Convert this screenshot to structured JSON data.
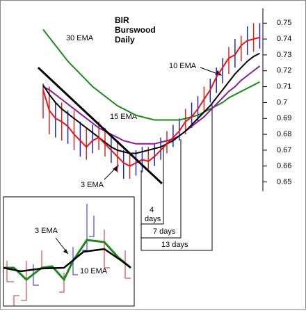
{
  "chart_data": {
    "type": "ohlc",
    "title_lines": [
      "BIR",
      "Burswood",
      "Daily"
    ],
    "x": [
      0,
      1,
      2,
      3,
      4,
      5,
      6,
      7,
      8,
      9,
      10,
      11,
      12,
      13,
      14,
      15,
      16,
      17,
      18,
      19,
      20,
      21,
      22,
      23,
      24,
      25,
      26,
      27,
      28,
      29,
      30,
      31,
      32,
      33,
      34,
      35
    ],
    "high": [
      0.712,
      0.71,
      0.7,
      0.7,
      0.695,
      0.695,
      0.688,
      0.684,
      0.686,
      0.688,
      0.684,
      0.68,
      0.675,
      0.67,
      0.668,
      0.67,
      0.672,
      0.672,
      0.674,
      0.678,
      0.682,
      0.686,
      0.69,
      0.696,
      0.7,
      0.704,
      0.71,
      0.715,
      0.722,
      0.728,
      0.735,
      0.74,
      0.742,
      0.748,
      0.75,
      0.75
    ],
    "low": [
      0.69,
      0.68,
      0.678,
      0.676,
      0.674,
      0.67,
      0.666,
      0.664,
      0.668,
      0.67,
      0.666,
      0.662,
      0.656,
      0.652,
      0.652,
      0.654,
      0.656,
      0.658,
      0.66,
      0.664,
      0.668,
      0.672,
      0.676,
      0.68,
      0.684,
      0.688,
      0.694,
      0.7,
      0.706,
      0.712,
      0.718,
      0.722,
      0.726,
      0.73,
      0.732,
      0.734
    ],
    "bar_colors": [
      "#d22",
      "#d22",
      "#22c",
      "#d22",
      "#22c",
      "#d22",
      "#22c",
      "#d22",
      "#22c",
      "#d22",
      "#d22",
      "#22c",
      "#d22",
      "#22c",
      "#d22",
      "#22c",
      "#22c",
      "#d22",
      "#22c",
      "#22c",
      "#d22",
      "#22c",
      "#22c",
      "#d22",
      "#22c",
      "#22c",
      "#d22",
      "#22c",
      "#22c",
      "#22c",
      "#d22",
      "#22c",
      "#d22",
      "#22c",
      "#d22",
      "#22c"
    ],
    "series": [
      {
        "name": "30 EMA",
        "color": "#1a8a1a",
        "values": [
          0.746,
          0.741,
          0.736,
          0.731,
          0.726,
          0.722,
          0.718,
          0.714,
          0.71,
          0.707,
          0.704,
          0.701,
          0.698,
          0.696,
          0.694,
          0.692,
          0.691,
          0.69,
          0.689,
          0.689,
          0.689,
          0.689,
          0.689,
          0.69,
          0.691,
          0.692,
          0.694,
          0.696,
          0.698,
          0.7,
          0.703,
          0.705,
          0.707,
          0.709,
          0.711,
          0.713
        ]
      },
      {
        "name": "15 EMA",
        "color": "#8a1a9a",
        "values": [
          0.71,
          0.708,
          0.705,
          0.702,
          0.699,
          0.696,
          0.693,
          0.69,
          0.687,
          0.684,
          0.682,
          0.68,
          0.678,
          0.676,
          0.675,
          0.674,
          0.674,
          0.674,
          0.674,
          0.675,
          0.676,
          0.677,
          0.679,
          0.682,
          0.685,
          0.688,
          0.691,
          0.695,
          0.699,
          0.703,
          0.707,
          0.71,
          0.714,
          0.717,
          0.72,
          0.723
        ]
      },
      {
        "name": "10 EMA",
        "color": "#000000",
        "values": [
          0.711,
          0.705,
          0.7,
          0.696,
          0.693,
          0.69,
          0.687,
          0.684,
          0.681,
          0.678,
          0.675,
          0.672,
          0.67,
          0.669,
          0.668,
          0.668,
          0.669,
          0.67,
          0.671,
          0.672,
          0.674,
          0.676,
          0.679,
          0.682,
          0.686,
          0.69,
          0.694,
          0.698,
          0.703,
          0.708,
          0.713,
          0.718,
          0.722,
          0.726,
          0.729,
          0.731
        ]
      },
      {
        "name": "3 EMA",
        "color": "#ee1111",
        "values": [
          0.708,
          0.695,
          0.69,
          0.688,
          0.685,
          0.68,
          0.676,
          0.672,
          0.676,
          0.678,
          0.674,
          0.67,
          0.666,
          0.662,
          0.66,
          0.662,
          0.664,
          0.663,
          0.666,
          0.67,
          0.674,
          0.678,
          0.682,
          0.688,
          0.691,
          0.696,
          0.702,
          0.708,
          0.716,
          0.722,
          0.728,
          0.73,
          0.736,
          0.739,
          0.74,
          0.741
        ]
      }
    ],
    "trendline": {
      "x": [
        -0.8,
        19.2
      ],
      "y": [
        0.722,
        0.649
      ]
    },
    "ylim": [
      0.645,
      0.758
    ],
    "yticks": [
      0.65,
      0.66,
      0.67,
      0.68,
      0.69,
      0.7,
      0.71,
      0.72,
      0.73,
      0.74,
      0.75
    ],
    "day_labels": {
      "four": [
        "4",
        "days"
      ],
      "seven": "7 days",
      "thirteen": "13 days"
    },
    "inset": {
      "label_3": "3 EMA",
      "label_10": "10 EMA"
    }
  }
}
